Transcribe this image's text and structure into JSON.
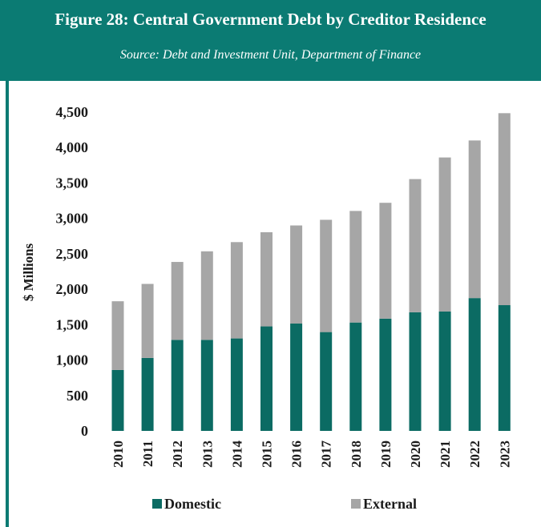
{
  "header": {
    "title": "Figure 28: Central Government Debt by Creditor Residence",
    "subtitle": "Source: Debt and Investment Unit, Department of Finance"
  },
  "colors": {
    "header_bg": "#0b7b73",
    "domestic": "#0b6b63",
    "external": "#a6a6a6"
  },
  "chart_data": {
    "type": "bar",
    "stacked": true,
    "title": "Figure 28: Central Government Debt by Creditor Residence",
    "xlabel": "",
    "ylabel": "$ Millions",
    "ylim": [
      0,
      4500
    ],
    "yticks": [
      0,
      500,
      1000,
      1500,
      2000,
      2500,
      3000,
      3500,
      4000,
      4500
    ],
    "ytick_labels": [
      "0",
      "500",
      "1,000",
      "1,500",
      "2,000",
      "2,500",
      "3,000",
      "3,500",
      "4,000",
      "4,500"
    ],
    "grid": false,
    "legend_position": "bottom",
    "categories": [
      "2010",
      "2011",
      "2012",
      "2013",
      "2014",
      "2015",
      "2016",
      "2017",
      "2018",
      "2019",
      "2020",
      "2021",
      "2022",
      "2023"
    ],
    "series": [
      {
        "name": "Domestic",
        "color": "#0b6b63",
        "values": [
          860,
          1030,
          1285,
          1285,
          1305,
          1475,
          1515,
          1395,
          1530,
          1585,
          1675,
          1685,
          1875,
          1775
        ]
      },
      {
        "name": "External",
        "color": "#a6a6a6",
        "values": [
          970,
          1045,
          1100,
          1250,
          1360,
          1330,
          1385,
          1585,
          1575,
          1635,
          1880,
          2175,
          2225,
          2710
        ]
      }
    ]
  }
}
